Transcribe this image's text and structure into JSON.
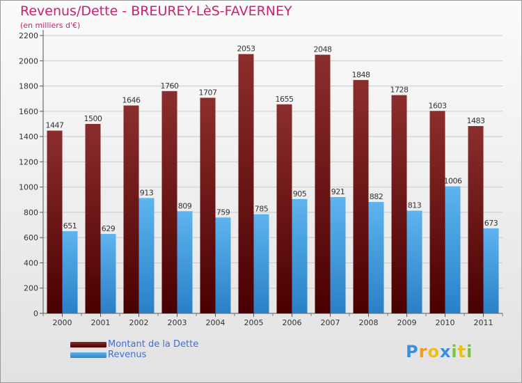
{
  "chart_data": {
    "type": "bar",
    "title": "Revenus/Dette - BREUREY-LèS-FAVERNEY",
    "subtitle": "(en milliers d'€)",
    "categories": [
      "2000",
      "2001",
      "2002",
      "2003",
      "2004",
      "2005",
      "2006",
      "2007",
      "2008",
      "2009",
      "2010",
      "2011"
    ],
    "series": [
      {
        "name": "Montant de la Dette",
        "values": [
          1447,
          1500,
          1646,
          1760,
          1707,
          2053,
          1655,
          2048,
          1848,
          1728,
          1603,
          1483
        ],
        "color": "#7a1c1c"
      },
      {
        "name": "Revenus",
        "values": [
          651,
          629,
          913,
          809,
          759,
          785,
          905,
          921,
          882,
          813,
          1006,
          673
        ],
        "color": "#4aa3e6"
      }
    ],
    "ylim": [
      0,
      2200
    ],
    "yticks": [
      0,
      200,
      400,
      600,
      800,
      1000,
      1200,
      1400,
      1600,
      1800,
      2000,
      2200
    ],
    "grid": true,
    "legend_position": "bottom-left"
  },
  "logo": {
    "text": "Proxiti",
    "letters": [
      {
        "ch": "P",
        "color": "#3a8ee0"
      },
      {
        "ch": "r",
        "color": "#f29a1d"
      },
      {
        "ch": "o",
        "color": "#e8c21a"
      },
      {
        "ch": "x",
        "color": "#3a8ee0"
      },
      {
        "ch": "i",
        "color": "#7cc242"
      },
      {
        "ch": "t",
        "color": "#e8c21a"
      },
      {
        "ch": "i",
        "color": "#7cc242"
      }
    ]
  }
}
